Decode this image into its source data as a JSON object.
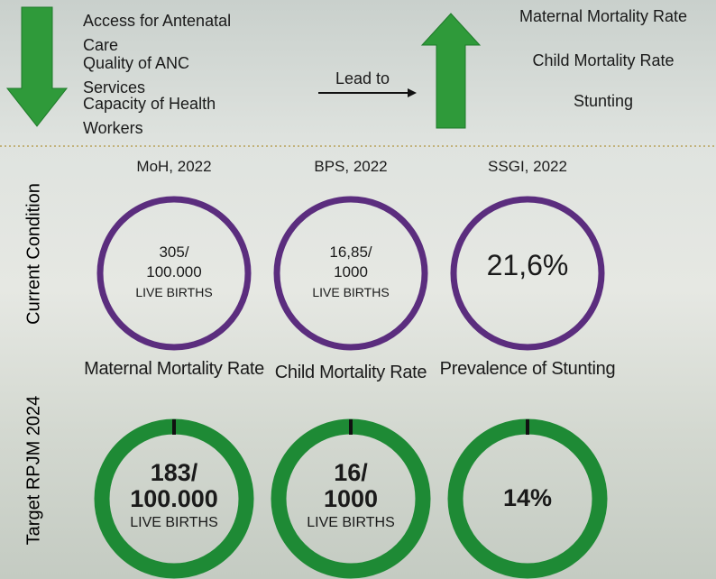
{
  "causes": [
    "Access for Antenatal Care",
    "Quality of ANC Services",
    "Capacity of Health Workers"
  ],
  "lead_to": "Lead to",
  "effects": [
    "Maternal Mortality Rate",
    "Child Mortality Rate",
    "Stunting"
  ],
  "row_labels": {
    "current": "Current Condition",
    "target": "Target RPJM 2024"
  },
  "indicators": [
    {
      "source": "MoH, 2022",
      "current": [
        "305/",
        "100.000",
        "LIVE BIRTHS"
      ],
      "name": "Maternal Mortality Rate",
      "target": [
        "183/",
        "100.000",
        "LIVE BIRTHS"
      ]
    },
    {
      "source": "BPS, 2022",
      "current": [
        "16,85/",
        "1000",
        "LIVE BIRTHS"
      ],
      "name": "Child Mortality Rate",
      "target": [
        "16/",
        "1000",
        "LIVE BIRTHS"
      ]
    },
    {
      "source": "SSGI, 2022",
      "current": [
        "21,6%"
      ],
      "name": "Prevalence of Stunting",
      "target": [
        "14%"
      ]
    }
  ]
}
